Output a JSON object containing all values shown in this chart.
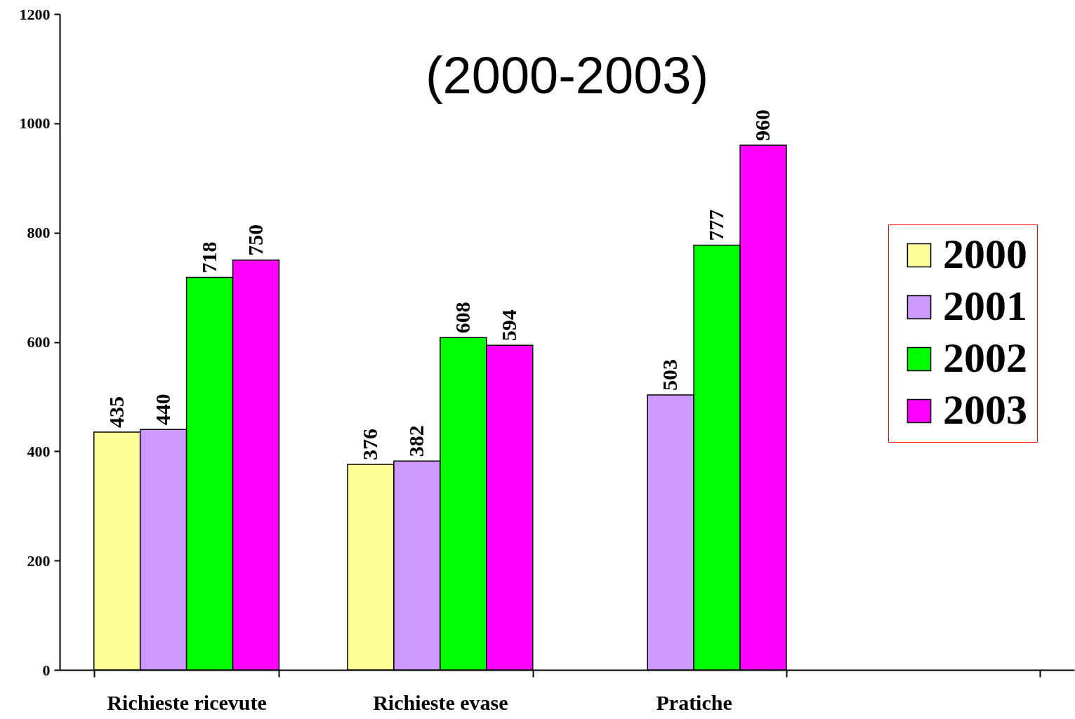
{
  "chart_data": {
    "type": "bar",
    "title": "(2000-2003)",
    "categories": [
      "Richieste ricevute",
      "Richieste evase",
      "Pratiche",
      null
    ],
    "series": [
      {
        "name": "2000",
        "color": "#ffff99",
        "values": [
          435,
          376,
          null,
          null
        ]
      },
      {
        "name": "2001",
        "color": "#cc99ff",
        "values": [
          440,
          382,
          503,
          null
        ]
      },
      {
        "name": "2002",
        "color": "#00ff00",
        "values": [
          718,
          608,
          777,
          null
        ]
      },
      {
        "name": "2003",
        "color": "#ff00ff",
        "values": [
          750,
          594,
          960,
          null
        ]
      }
    ],
    "ylim": [
      0,
      1200
    ],
    "yticks": [
      0,
      200,
      400,
      600,
      800,
      1000,
      1200
    ],
    "grid": false,
    "legend": "right",
    "data_labels": true
  }
}
